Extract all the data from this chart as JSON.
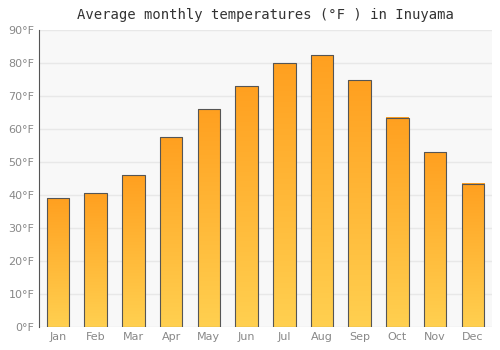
{
  "title": "Average monthly temperatures (°F ) in Inuyama",
  "months": [
    "Jan",
    "Feb",
    "Mar",
    "Apr",
    "May",
    "Jun",
    "Jul",
    "Aug",
    "Sep",
    "Oct",
    "Nov",
    "Dec"
  ],
  "values": [
    39,
    40.5,
    46,
    57.5,
    66,
    73,
    80,
    82.5,
    75,
    63.5,
    53,
    43.5
  ],
  "ylim": [
    0,
    90
  ],
  "yticks": [
    0,
    10,
    20,
    30,
    40,
    50,
    60,
    70,
    80,
    90
  ],
  "ytick_labels": [
    "0°F",
    "10°F",
    "20°F",
    "30°F",
    "40°F",
    "50°F",
    "60°F",
    "70°F",
    "80°F",
    "90°F"
  ],
  "background_color": "#ffffff",
  "plot_bg_color": "#f8f8f8",
  "grid_color": "#e8e8e8",
  "bar_color_bottom": "#FFD050",
  "bar_color_top": "#FFA020",
  "bar_edge_color": "#555555",
  "title_fontsize": 10,
  "tick_fontsize": 8,
  "tick_color": "#888888",
  "bar_width": 0.6
}
